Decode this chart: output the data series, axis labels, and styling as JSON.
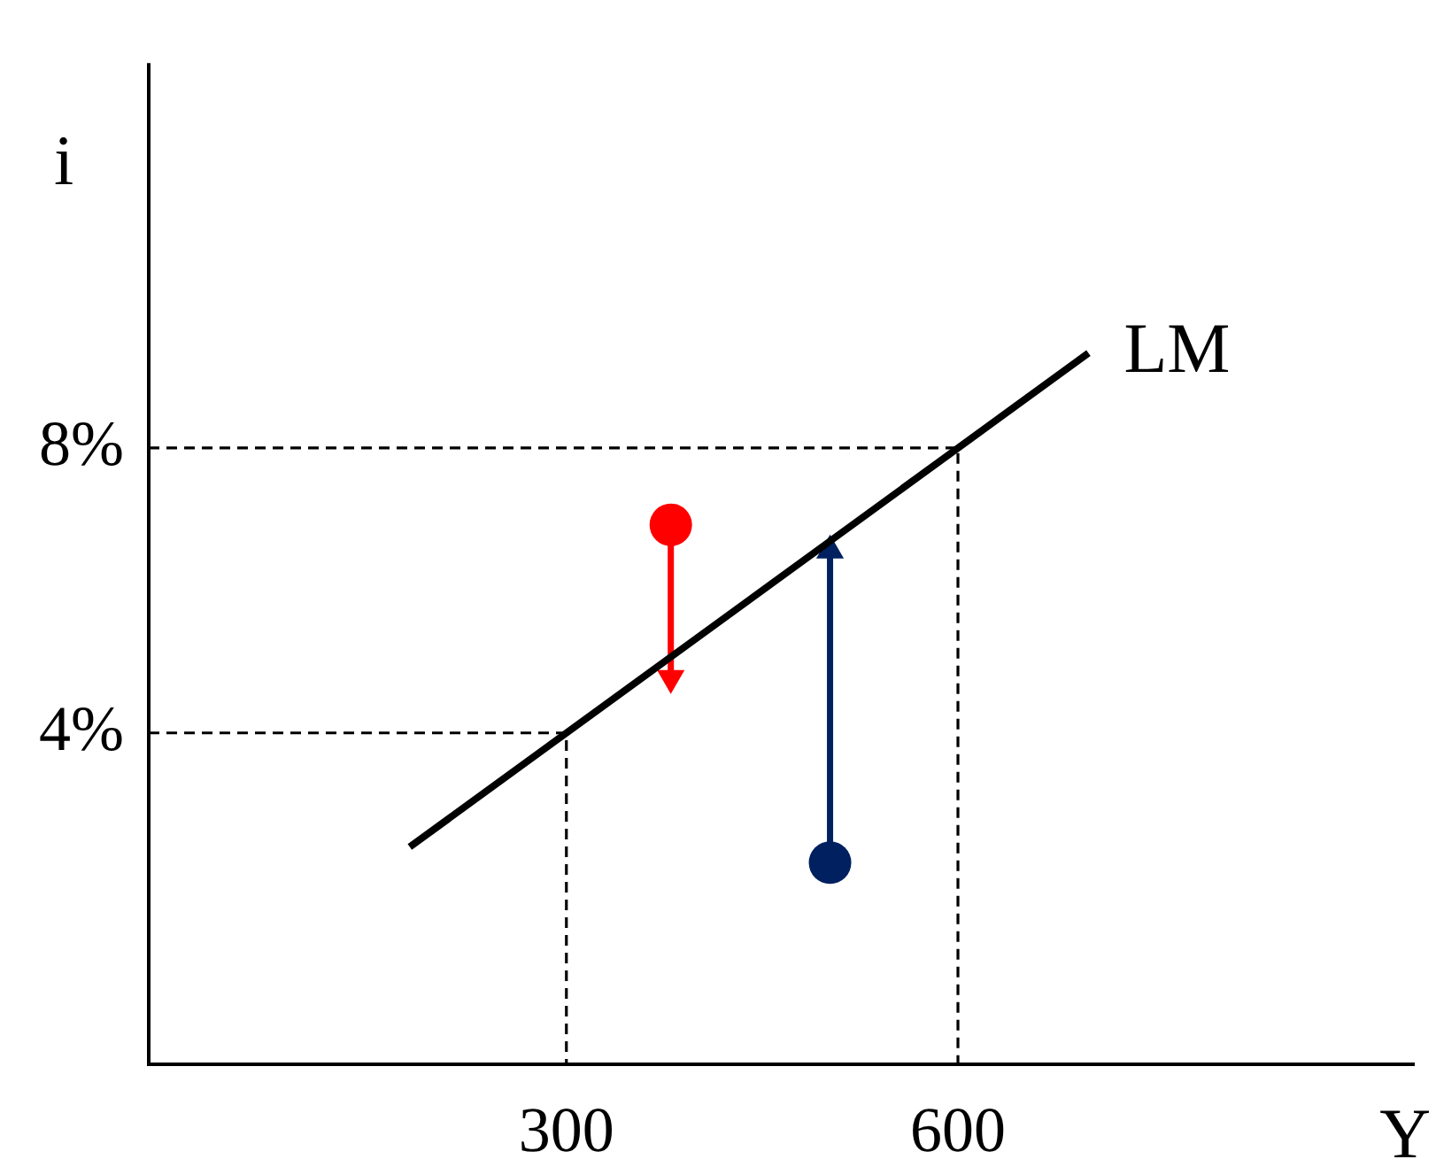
{
  "chart_data": {
    "type": "line",
    "xlabel": "Y",
    "ylabel": "i",
    "xlim": [
      -20,
      950
    ],
    "ylim": [
      -0.65,
      13.4
    ],
    "xticks": [
      300,
      600
    ],
    "yticks": [
      {
        "value": 4,
        "label": "4%"
      },
      {
        "value": 8,
        "label": "8%"
      }
    ],
    "grid": false,
    "legend": false,
    "marker": "none",
    "series": [
      {
        "name": "LM",
        "color": "#000000",
        "x": [
          180,
          700
        ],
        "values": [
          2.4,
          9.33
        ]
      },
      {
        "color": "#000000",
        "line_style": "dashed",
        "x": [
          -20,
          600,
          600
        ],
        "values": [
          8,
          8,
          -0.65
        ]
      },
      {
        "color": "#000000",
        "line_style": "dashed",
        "x": [
          -20,
          300,
          300
        ],
        "values": [
          4,
          4,
          -0.65
        ]
      },
      {
        "color": "#ff0000",
        "marker": "triangle",
        "x": [
          380,
          380
        ],
        "values": [
          6.92,
          4.77
        ]
      },
      {
        "color": "#002060",
        "marker": "triangle",
        "x": [
          502,
          502
        ],
        "values": [
          2.18,
          6.56
        ]
      },
      {
        "type": "scatter",
        "color": "#ff0000",
        "marker": "circle",
        "x": [
          380
        ],
        "values": [
          6.92
        ]
      },
      {
        "type": "scatter",
        "color": "#002060",
        "marker": "circle",
        "x": [
          502
        ],
        "values": [
          2.18
        ]
      }
    ]
  }
}
